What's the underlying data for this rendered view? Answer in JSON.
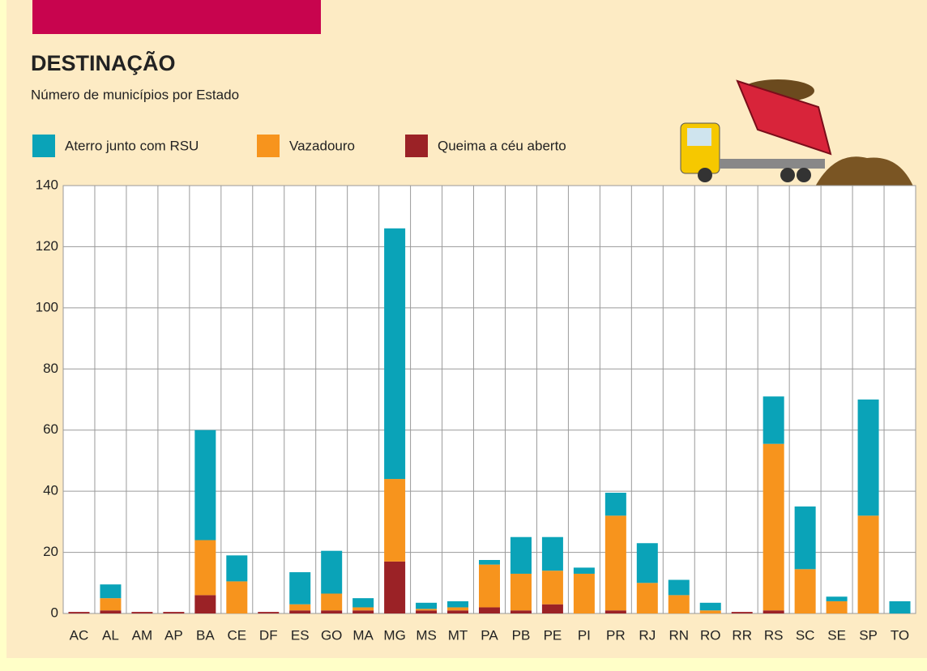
{
  "chart_data": {
    "type": "stacked-bar",
    "title": "DESTINAÇÃO",
    "subtitle": "Número de municípios por Estado",
    "categories": [
      "AC",
      "AL",
      "AM",
      "AP",
      "BA",
      "CE",
      "DF",
      "ES",
      "GO",
      "MA",
      "MG",
      "MS",
      "MT",
      "PA",
      "PB",
      "PE",
      "PI",
      "PR",
      "RJ",
      "RN",
      "RO",
      "RR",
      "RS",
      "SC",
      "SE",
      "SP",
      "TO"
    ],
    "series": [
      {
        "name": "Aterro junto com RSU",
        "color": "#0aa3b8",
        "values": [
          0,
          4.5,
          0,
          0,
          36,
          8.5,
          0,
          10.5,
          14,
          3,
          82,
          2,
          2,
          1.5,
          12,
          11,
          2,
          7.5,
          13,
          5,
          2.5,
          0,
          15.5,
          20.5,
          1.5,
          38,
          4
        ]
      },
      {
        "name": "Vazadouro",
        "color": "#f7941d",
        "values": [
          0,
          4,
          0,
          0,
          18,
          10.5,
          0,
          2,
          5.5,
          1,
          27,
          0.5,
          1,
          14,
          12,
          11,
          13,
          31,
          10,
          6,
          1,
          0,
          54.5,
          14.5,
          4,
          32,
          0
        ]
      },
      {
        "name": "Queima a céu aberto",
        "color": "#9b2226",
        "values": [
          0.5,
          1,
          0.5,
          0.5,
          6,
          0,
          0.5,
          1,
          1,
          1,
          17,
          1,
          1,
          2,
          1,
          3,
          0,
          1,
          0,
          0,
          0,
          0.5,
          1,
          0,
          0,
          0,
          0
        ]
      }
    ],
    "ylim": [
      0,
      140
    ],
    "yticks": [
      0,
      20,
      40,
      60,
      80,
      100,
      120,
      140
    ],
    "grid": true
  }
}
